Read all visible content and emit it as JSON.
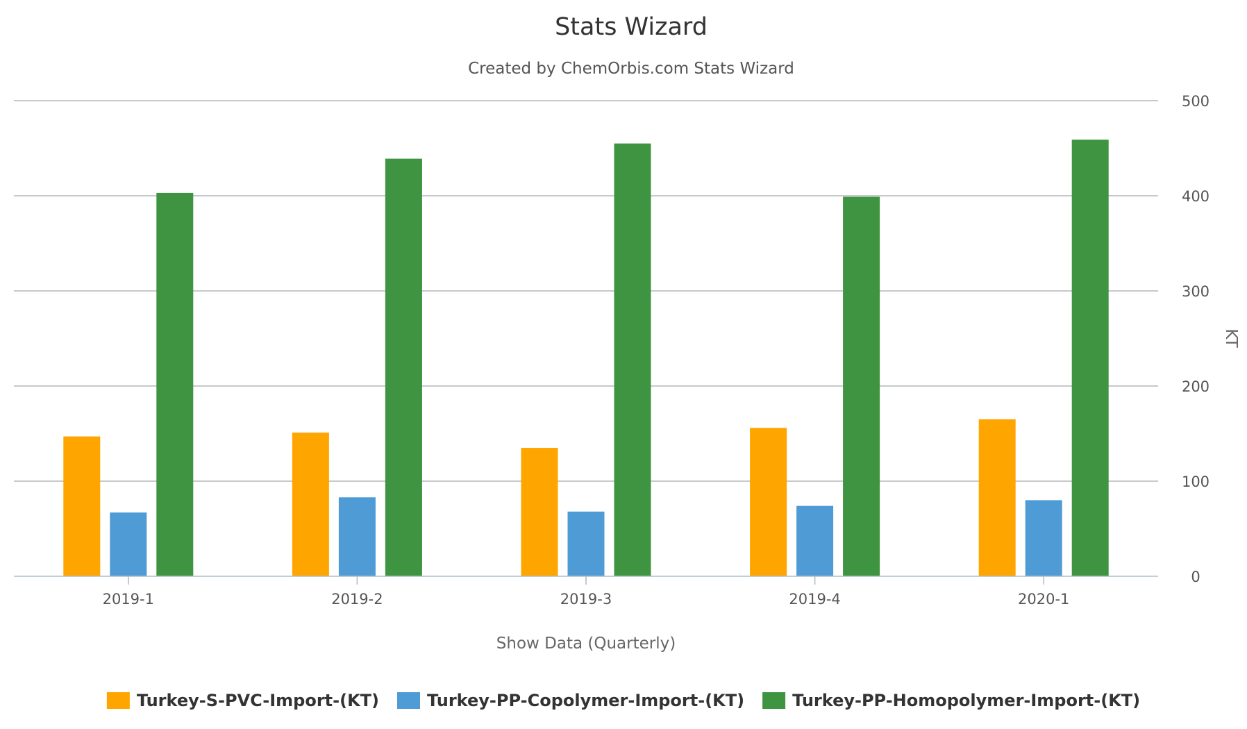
{
  "chart_data": {
    "type": "bar",
    "title": "Stats Wizard",
    "subtitle": "Created by ChemOrbis.com Stats Wizard",
    "xlabel": "Show Data (Quarterly)",
    "ylabel": "KT",
    "ylim": [
      0,
      500
    ],
    "yticks": [
      0,
      100,
      200,
      300,
      400,
      500
    ],
    "y_axis_side": "right",
    "grid": true,
    "legend_position": "bottom-center",
    "categories": [
      "2019-1",
      "2019-2",
      "2019-3",
      "2019-4",
      "2020-1"
    ],
    "series": [
      {
        "name": "Turkey-S-PVC-Import-(KT)",
        "color": "#ffa500",
        "values": [
          147,
          151,
          135,
          156,
          165
        ]
      },
      {
        "name": "Turkey-PP-Copolymer-Import-(KT)",
        "color": "#4f9bd5",
        "values": [
          67,
          83,
          68,
          74,
          80
        ]
      },
      {
        "name": "Turkey-PP-Homopolymer-Import-(KT)",
        "color": "#3e9440",
        "values": [
          403,
          439,
          455,
          399,
          459
        ]
      }
    ]
  }
}
